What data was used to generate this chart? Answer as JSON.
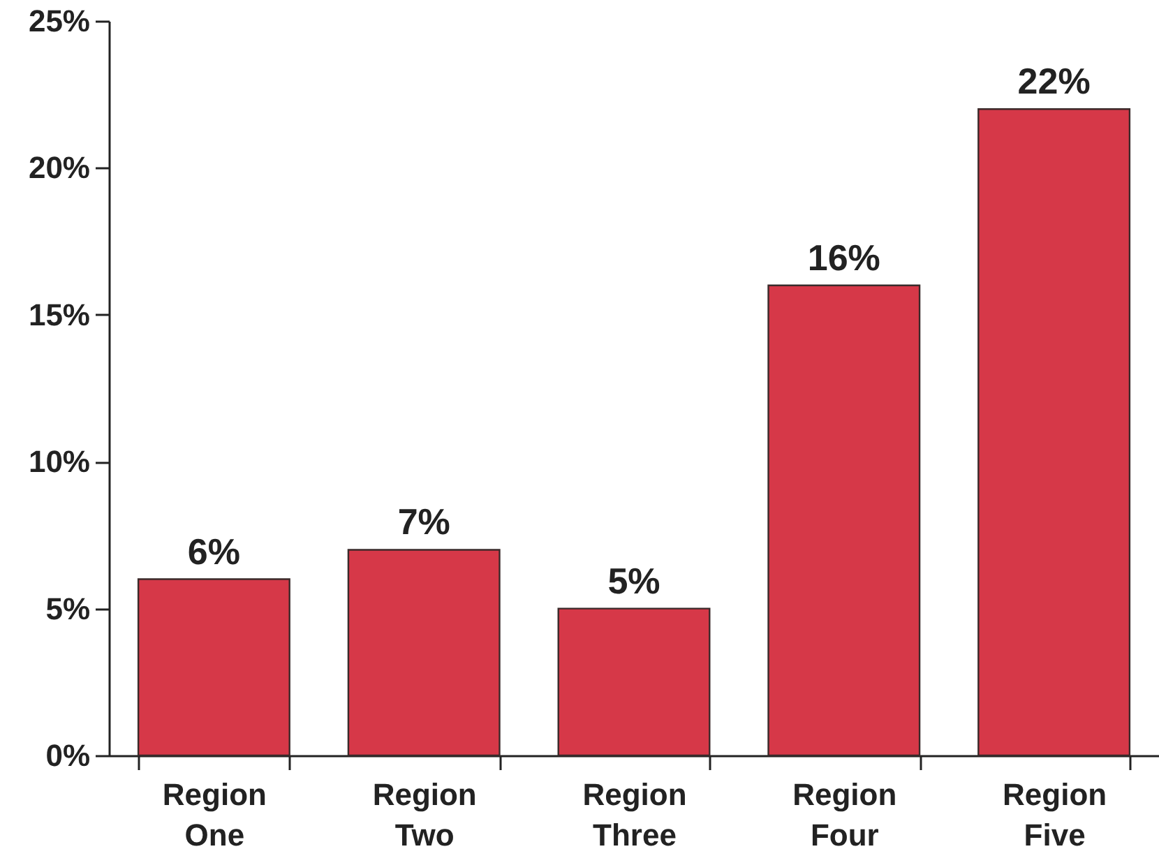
{
  "chart_data": {
    "type": "bar",
    "categories": [
      "Region One",
      "Region Two",
      "Region Three",
      "Region Four",
      "Region Five"
    ],
    "values": [
      6,
      7,
      5,
      16,
      22
    ],
    "color": "#d63848",
    "value_labels": [
      "6%",
      "7%",
      "5%",
      "16%",
      "22%"
    ],
    "ylim": [
      0,
      25
    ],
    "yticks": [
      {
        "value": 0,
        "label": "0%"
      },
      {
        "value": 5,
        "label": "5%"
      },
      {
        "value": 10,
        "label": "10%"
      },
      {
        "value": 15,
        "label": "15%"
      },
      {
        "value": 20,
        "label": "20%"
      },
      {
        "value": 25,
        "label": "25%"
      }
    ],
    "grid": false
  }
}
